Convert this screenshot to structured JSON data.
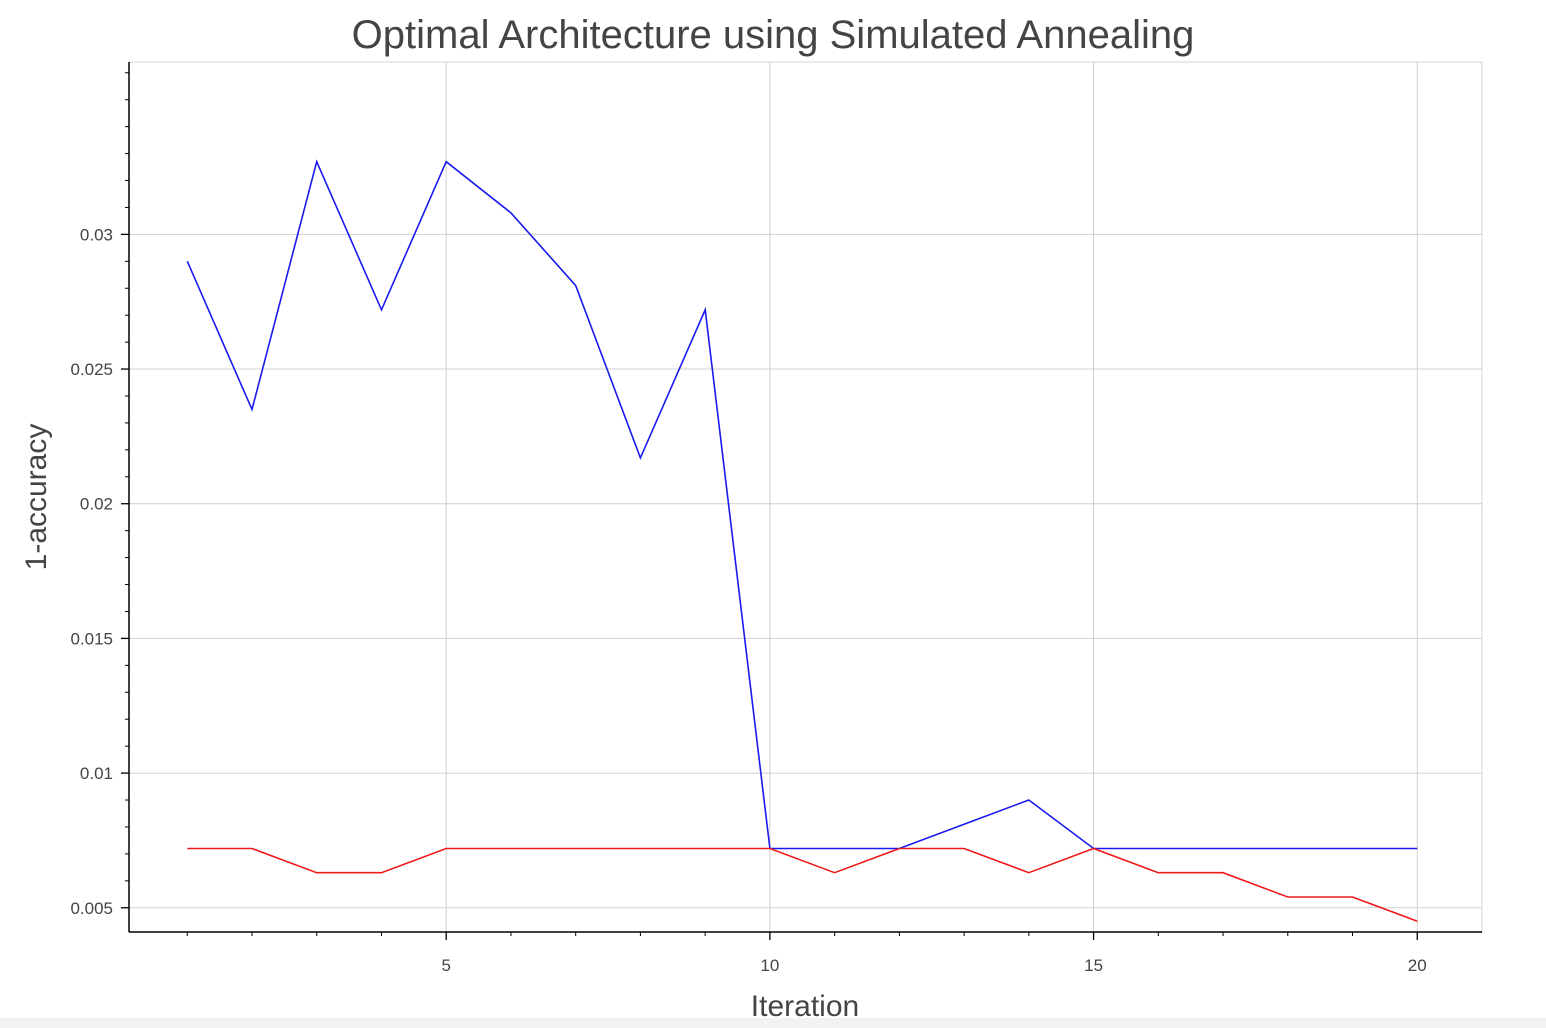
{
  "chart_data": {
    "type": "line",
    "title": "Optimal Architecture using Simulated Annealing",
    "xlabel": "Iteration",
    "ylabel": "1-accuracy",
    "xlim": [
      0.1,
      21
    ],
    "ylim": [
      0.0041,
      0.0364
    ],
    "xticks": [
      5,
      10,
      15,
      20
    ],
    "xtick_labels": [
      "5",
      "10",
      "15",
      "20"
    ],
    "x_minor_ticks": [
      1,
      2,
      3,
      4,
      6,
      7,
      8,
      9,
      11,
      12,
      13,
      14,
      16,
      17,
      18,
      19
    ],
    "yticks": [
      0.005,
      0.01,
      0.015,
      0.02,
      0.025,
      0.03
    ],
    "ytick_labels": [
      "0.005",
      "0.01",
      "0.015",
      "0.02",
      "0.025",
      "0.03"
    ],
    "y_minor_step": 0.001,
    "grid": true,
    "x": [
      1,
      2,
      3,
      4,
      5,
      6,
      7,
      8,
      9,
      10,
      11,
      12,
      13,
      14,
      15,
      16,
      17,
      18,
      19,
      20
    ],
    "series": [
      {
        "color": "#1a1aee",
        "values": [
          0.029,
          0.0235,
          0.0327,
          0.0272,
          0.0327,
          0.0308,
          0.0281,
          0.0217,
          0.0272,
          0.0072,
          0.0072,
          0.0072,
          0.0081,
          0.009,
          0.0072,
          0.0072,
          0.0072,
          0.0072,
          0.0072,
          0.0072
        ]
      },
      {
        "color": "#ee1a1a",
        "values": [
          0.0072,
          0.0072,
          0.0063,
          0.0063,
          0.0072,
          0.0072,
          0.0072,
          0.0072,
          0.0072,
          0.0072,
          0.0063,
          0.0072,
          0.0072,
          0.0063,
          0.0072,
          0.0063,
          0.0063,
          0.0054,
          0.0054,
          0.0045
        ]
      }
    ]
  }
}
